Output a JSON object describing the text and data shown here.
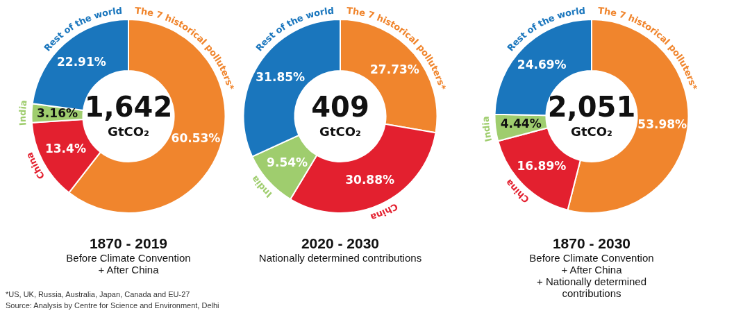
{
  "chart_data": [
    {
      "type": "donut",
      "title": "1870 - 2019",
      "subtitle": "Before Climate Convention\n+ After China",
      "categories": [
        "The 7 historical polluters*",
        "China",
        "India",
        "Rest of the world"
      ],
      "values": [
        60.53,
        13.4,
        3.16,
        22.91
      ],
      "value_labels": [
        "60.53%",
        "13.4%",
        "3.16%",
        "22.91%"
      ],
      "colors": [
        "#f0852d",
        "#e3202f",
        "#9fcd6e",
        "#1a76bd"
      ],
      "legend": false,
      "annotations": [
        "1,642",
        "GtCO₂",
        "*US, UK, Russia, Australia, Japan, Canada and EU-27",
        "Source: Analysis by Centre for Science and Environment, Delhi"
      ]
    },
    {
      "type": "donut",
      "title": "2020 - 2030",
      "subtitle": "Nationally determined contributions",
      "categories": [
        "The 7 historical polluters*",
        "China",
        "India",
        "Rest of the world"
      ],
      "values": [
        27.73,
        30.88,
        9.54,
        31.85
      ],
      "value_labels": [
        "27.73%",
        "30.88%",
        "9.54%",
        "31.85%"
      ],
      "colors": [
        "#f0852d",
        "#e3202f",
        "#9fcd6e",
        "#1a76bd"
      ],
      "legend": false,
      "annotations": [
        "409",
        "GtCO₂"
      ]
    },
    {
      "type": "donut",
      "title": "1870 - 2030",
      "subtitle": "Before Climate Convention\n+ After China\n+ Nationally determined\ncontributions",
      "categories": [
        "The 7 historical polluters*",
        "China",
        "India",
        "Rest of the world"
      ],
      "values": [
        53.98,
        16.89,
        4.44,
        24.69
      ],
      "value_labels": [
        "53.98%",
        "16.89%",
        "4.44%",
        "24.69%"
      ],
      "colors": [
        "#f0852d",
        "#e3202f",
        "#9fcd6e",
        "#1a76bd"
      ],
      "legend": false,
      "annotations": [
        "2,051",
        "GtCO₂"
      ]
    }
  ]
}
